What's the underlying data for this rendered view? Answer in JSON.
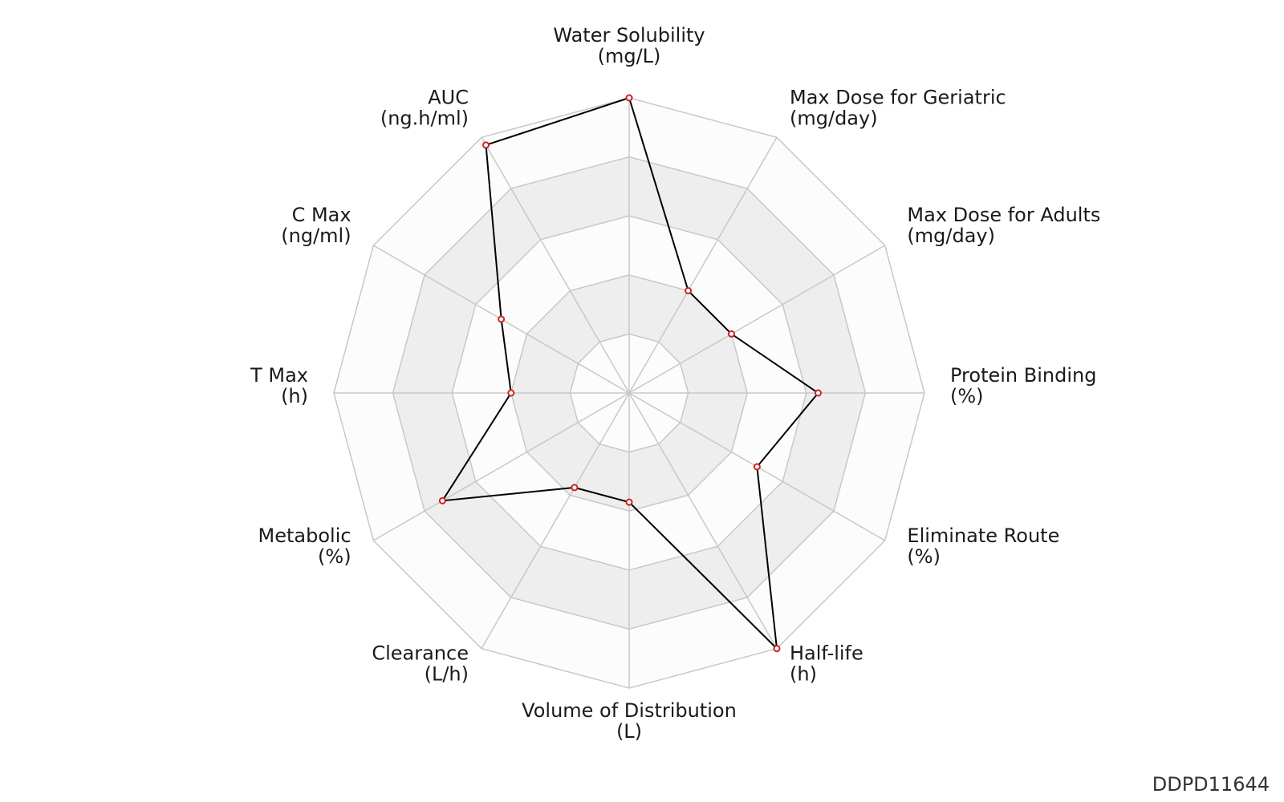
{
  "chart_data": {
    "type": "radar",
    "axes": [
      {
        "name": "Water Solubility",
        "unit": "(mg/L)"
      },
      {
        "name": "Max Dose for Geriatric",
        "unit": "(mg/day)"
      },
      {
        "name": "Max Dose for Adults",
        "unit": "(mg/day)"
      },
      {
        "name": "Protein Binding",
        "unit": "(%)"
      },
      {
        "name": "Eliminate Route",
        "unit": "(%)"
      },
      {
        "name": "Half-life",
        "unit": "(h)"
      },
      {
        "name": "Volume of Distribution",
        "unit": "(L)"
      },
      {
        "name": "Clearance",
        "unit": "(L/h)"
      },
      {
        "name": "Metabolic",
        "unit": "(%)"
      },
      {
        "name": "T Max",
        "unit": "(h)"
      },
      {
        "name": "C Max",
        "unit": "(ng/ml)"
      },
      {
        "name": "AUC",
        "unit": "(ng.h/ml)"
      }
    ],
    "series": [
      {
        "values": [
          1.0,
          0.4,
          0.4,
          0.64,
          0.5,
          1.0,
          0.37,
          0.37,
          0.73,
          0.4,
          0.5,
          0.97
        ]
      }
    ],
    "range": [
      0,
      1
    ],
    "rings": 5,
    "grid": true
  },
  "watermark": "DDPD11644",
  "colors": {
    "line": "#000000",
    "marker_edge": "#cc2222",
    "marker_fill": "#ffffff",
    "grid": "#c8c8c8",
    "band_dark": "#eeeeee",
    "band_light": "#fcfcfc"
  }
}
